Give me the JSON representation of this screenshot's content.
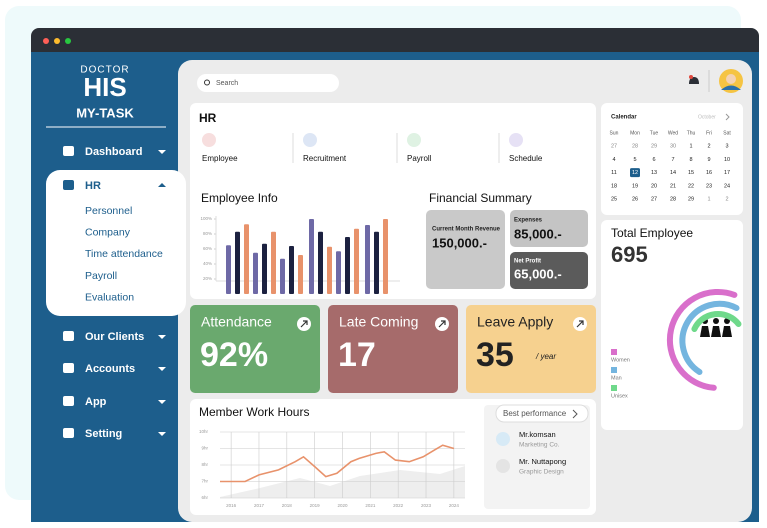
{
  "sidebar": {
    "logo_top": "DOCTOR",
    "logo": "HIS",
    "app_name": "MY-TASK",
    "menu": [
      {
        "label": "Dashboard"
      },
      {
        "label": "HR",
        "submenu": [
          "Personnel",
          "Company",
          "Time attendance",
          "Payroll",
          "Evaluation"
        ]
      },
      {
        "label": "Our Clients"
      },
      {
        "label": "Accounts"
      },
      {
        "label": "App"
      },
      {
        "label": "Setting"
      }
    ]
  },
  "search": {
    "placeholder": "Search"
  },
  "hr": {
    "title": "HR",
    "items": [
      "Employee",
      "Recruitment",
      "Payroll",
      "Schedule"
    ]
  },
  "employee_info": {
    "type": "bar",
    "title": "Employee Info",
    "ylim": [
      0,
      100
    ],
    "yticks": [
      {
        "value": 100,
        "label": "100%"
      },
      {
        "value": 80,
        "label": "80%"
      },
      {
        "value": 60,
        "label": "60%"
      },
      {
        "value": 40,
        "label": "40%"
      },
      {
        "value": 20,
        "label": "20%"
      }
    ],
    "series": [
      {
        "color": "#6e69a6",
        "values": [
          65,
          55,
          47,
          100,
          57,
          92
        ]
      },
      {
        "color": "#1c2140",
        "values": [
          83,
          67,
          64,
          83,
          76,
          83
        ]
      },
      {
        "color": "#e8926b",
        "values": [
          93,
          83,
          52,
          63,
          87,
          100
        ]
      }
    ]
  },
  "financial_summary": {
    "title": "Financial Summary",
    "revenue": {
      "label": "Current Month Revenue",
      "value": "150,000.-"
    },
    "expenses": {
      "label": "Expenses",
      "value": "85,000.-"
    },
    "net_profit": {
      "label": "Net Profit",
      "value": "65,000.-"
    }
  },
  "stats": [
    {
      "label": "Attendance",
      "value": "92%",
      "color": "#6aa96e"
    },
    {
      "label": "Late Coming",
      "value": "17",
      "color": "#a66b6b"
    },
    {
      "label": "Leave Apply",
      "value": "35",
      "unit": "/ year",
      "color": "#f6d18f"
    }
  ],
  "work_hours": {
    "type": "line",
    "title": "Member Work Hours",
    "color": "#e8926b",
    "x": [
      2015.6,
      2016.5,
      2017,
      2017.7,
      2018.3,
      2018.6,
      2019,
      2019.4,
      2019.8,
      2020.3,
      2020.6,
      2021.2,
      2021.5,
      2021.9,
      2022.4,
      2022.9,
      2023.3,
      2023.6,
      2024.0
    ],
    "values": [
      7.0,
      7.0,
      7.4,
      7.7,
      8.2,
      8.5,
      7.9,
      7.3,
      7.5,
      8.2,
      8.4,
      8.7,
      8.8,
      8.3,
      8.2,
      8.5,
      8.9,
      9.2,
      9.0
    ],
    "xlim": [
      2015.6,
      2024.4
    ],
    "xticks": [
      2016,
      2017,
      2018,
      2019,
      2020,
      2021,
      2022,
      2023,
      2024
    ],
    "ylim": [
      6,
      10
    ],
    "yticks": [
      {
        "value": 10,
        "label": "10hr"
      },
      {
        "value": 9,
        "label": "9hr"
      },
      {
        "value": 8,
        "label": "8hr"
      },
      {
        "value": 7,
        "label": "7hr"
      },
      {
        "value": 6,
        "label": "6hr"
      }
    ],
    "grid": true
  },
  "best_performance": {
    "title": "Best performance",
    "people": [
      {
        "name": "Mr.komsan",
        "role": "Marketing Co."
      },
      {
        "name": "Mr. Nuttapong",
        "role": "Graphic Design"
      }
    ]
  },
  "calendar": {
    "title": "Calendar",
    "month": "October",
    "weekdays": [
      "Sun",
      "Mon",
      "Tue",
      "Wed",
      "Thu",
      "Fri",
      "Sat"
    ],
    "weeks": [
      [
        "27",
        "28",
        "29",
        "30",
        "1",
        "2",
        "3"
      ],
      [
        "4",
        "5",
        "6",
        "7",
        "8",
        "9",
        "10"
      ],
      [
        "11",
        "12",
        "13",
        "14",
        "15",
        "16",
        "17"
      ],
      [
        "18",
        "19",
        "20",
        "21",
        "22",
        "23",
        "24"
      ],
      [
        "25",
        "26",
        "27",
        "28",
        "29",
        "1",
        "2"
      ]
    ]
  },
  "total_employee": {
    "title": "Total Employee",
    "value": "695",
    "legend": [
      {
        "label": "Women",
        "color": "#d96fcb"
      },
      {
        "label": "Man",
        "color": "#74b5df"
      },
      {
        "label": "Unisex",
        "color": "#6fd98b"
      }
    ]
  }
}
